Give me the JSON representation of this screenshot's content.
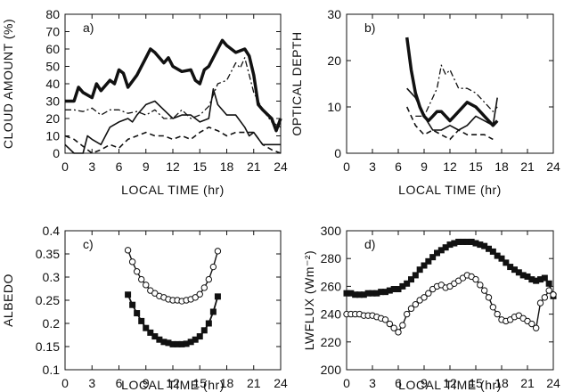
{
  "chart_data": [
    {
      "type": "line",
      "panel_label": "a)",
      "xlabel": "LOCAL TIME (hr)",
      "ylabel": "CLOUD AMOUNT (%)",
      "xlim": [
        0,
        24
      ],
      "ylim": [
        0,
        80
      ],
      "xticks": [
        0,
        3,
        6,
        9,
        12,
        15,
        18,
        21,
        24
      ],
      "yticks": [
        0,
        10,
        20,
        30,
        40,
        50,
        60,
        70,
        80
      ],
      "series": [
        {
          "style": "thick",
          "x": [
            0,
            1,
            1.5,
            2,
            3,
            3.5,
            4,
            5,
            5.5,
            6,
            6.5,
            7,
            8,
            9,
            9.5,
            10,
            11,
            11.5,
            12,
            13,
            14,
            14.5,
            15,
            15.5,
            16,
            17,
            17.5,
            18,
            19,
            20,
            20.5,
            21,
            21.5,
            22,
            23,
            23.5,
            24
          ],
          "y": [
            30,
            30,
            38,
            35,
            32,
            40,
            36,
            42,
            40,
            48,
            46,
            38,
            45,
            55,
            60,
            58,
            52,
            55,
            50,
            47,
            48,
            42,
            40,
            48,
            50,
            60,
            65,
            62,
            58,
            60,
            56,
            45,
            28,
            25,
            20,
            13,
            20
          ]
        },
        {
          "style": "thin",
          "x": [
            0,
            1,
            2,
            2.5,
            3,
            4,
            5,
            6,
            7,
            7.5,
            8,
            9,
            10,
            11,
            12,
            13,
            14,
            15,
            16,
            16.5,
            17,
            18,
            19,
            20,
            20.5,
            21,
            22,
            23,
            24
          ],
          "y": [
            5,
            0,
            0,
            10,
            8,
            5,
            15,
            18,
            20,
            18,
            22,
            28,
            30,
            25,
            20,
            22,
            22,
            18,
            20,
            37,
            28,
            22,
            22,
            15,
            10,
            12,
            5,
            5,
            5
          ]
        },
        {
          "style": "dashdot",
          "x": [
            0,
            1,
            2,
            3,
            4,
            5,
            6,
            7,
            8,
            9,
            10,
            11,
            12,
            13,
            14,
            15,
            16,
            17,
            18,
            19,
            19.5,
            20,
            21,
            22,
            23,
            24
          ],
          "y": [
            25,
            25,
            24,
            26,
            22,
            25,
            25,
            23,
            24,
            22,
            25,
            20,
            20,
            25,
            20,
            22,
            27,
            40,
            42,
            52,
            49,
            55,
            35,
            25,
            18,
            15
          ]
        },
        {
          "style": "dashed",
          "x": [
            0,
            1,
            2,
            3,
            4,
            5,
            6,
            7,
            8,
            9,
            10,
            11,
            12,
            13,
            14,
            15,
            16,
            17,
            18,
            19,
            20,
            21,
            22,
            23,
            24
          ],
          "y": [
            10,
            8,
            4,
            0,
            2,
            5,
            3,
            8,
            10,
            12,
            10,
            10,
            8,
            10,
            8,
            12,
            15,
            13,
            10,
            12,
            12,
            12,
            5,
            2,
            0
          ]
        }
      ]
    },
    {
      "type": "line",
      "panel_label": "b)",
      "xlabel": "LOCAL TIME (hr)",
      "ylabel": "OPTICAL DEPTH",
      "xlim": [
        0,
        24
      ],
      "ylim": [
        0,
        30
      ],
      "xticks": [
        0,
        3,
        6,
        9,
        12,
        15,
        18,
        21,
        24
      ],
      "yticks": [
        0,
        10,
        20,
        30
      ],
      "series": [
        {
          "style": "thick",
          "x": [
            7,
            7.5,
            8,
            8.5,
            9,
            9.5,
            10,
            10.5,
            11,
            11.5,
            12,
            13,
            14,
            15,
            16,
            17,
            17.5
          ],
          "y": [
            25,
            18,
            13,
            10,
            8,
            7,
            8,
            9,
            9,
            8,
            7,
            9,
            11,
            10,
            8,
            6,
            7
          ]
        },
        {
          "style": "thin",
          "x": [
            7,
            8,
            9,
            10,
            11,
            12,
            13,
            14,
            15,
            16,
            17,
            17.5
          ],
          "y": [
            14,
            12,
            8,
            5,
            5,
            6,
            5,
            6,
            8,
            7,
            6,
            12
          ]
        },
        {
          "style": "dashdot",
          "x": [
            8,
            9,
            10,
            10.5,
            11,
            11.5,
            12,
            13,
            14,
            15,
            16,
            17,
            17.5
          ],
          "y": [
            8,
            8,
            12,
            14,
            19,
            17,
            18,
            14,
            14,
            13,
            11,
            9,
            10
          ]
        },
        {
          "style": "dashed",
          "x": [
            7,
            8,
            9,
            10,
            11,
            12,
            13,
            14,
            15,
            16,
            17
          ],
          "y": [
            10,
            6,
            4,
            5,
            4,
            3,
            5,
            4,
            4,
            4,
            3
          ]
        }
      ]
    },
    {
      "type": "line",
      "panel_label": "c)",
      "xlabel": "LOCAL TIME (hr)",
      "ylabel": "ALBEDO",
      "xlim": [
        0,
        24
      ],
      "ylim": [
        0.1,
        0.4
      ],
      "xticks": [
        0,
        3,
        6,
        9,
        12,
        15,
        18,
        21,
        24
      ],
      "yticks": [
        0.1,
        0.15,
        0.2,
        0.25,
        0.3,
        0.35,
        0.4
      ],
      "ytick_labels": [
        "0.1",
        "0.15",
        "0.2",
        "0.25",
        "0.3",
        "0.35",
        "0.4"
      ],
      "series": [
        {
          "style": "circles",
          "x": [
            7,
            7.5,
            8,
            8.5,
            9,
            9.5,
            10,
            10.5,
            11,
            11.5,
            12,
            12.5,
            13,
            13.5,
            14,
            14.5,
            15,
            15.5,
            16,
            16.5,
            17
          ],
          "y": [
            0.358,
            0.333,
            0.312,
            0.295,
            0.283,
            0.271,
            0.265,
            0.259,
            0.256,
            0.252,
            0.25,
            0.25,
            0.248,
            0.25,
            0.252,
            0.256,
            0.263,
            0.277,
            0.295,
            0.322,
            0.356
          ]
        },
        {
          "style": "squares",
          "x": [
            7,
            7.5,
            8,
            8.5,
            9,
            9.5,
            10,
            10.5,
            11,
            11.5,
            12,
            12.5,
            13,
            13.5,
            14,
            14.5,
            15,
            15.5,
            16,
            16.5,
            17
          ],
          "y": [
            0.262,
            0.24,
            0.222,
            0.205,
            0.19,
            0.18,
            0.172,
            0.165,
            0.16,
            0.158,
            0.155,
            0.155,
            0.155,
            0.156,
            0.16,
            0.165,
            0.172,
            0.185,
            0.2,
            0.225,
            0.258
          ]
        }
      ]
    },
    {
      "type": "line",
      "panel_label": "d)",
      "xlabel": "LOCAL TIME (hr)",
      "ylabel": "LWFLUX (Wm⁻²)",
      "xlim": [
        0,
        24
      ],
      "ylim": [
        200,
        300
      ],
      "xticks": [
        0,
        3,
        6,
        9,
        12,
        15,
        18,
        21,
        24
      ],
      "yticks": [
        200,
        220,
        240,
        260,
        280,
        300
      ],
      "series": [
        {
          "style": "squares",
          "x": [
            0,
            0.5,
            1,
            1.5,
            2,
            2.5,
            3,
            3.5,
            4,
            4.5,
            5,
            5.5,
            6,
            6.5,
            7,
            7.5,
            8,
            8.5,
            9,
            9.5,
            10,
            10.5,
            11,
            11.5,
            12,
            12.5,
            13,
            13.5,
            14,
            14.5,
            15,
            15.5,
            16,
            16.5,
            17,
            17.5,
            18,
            18.5,
            19,
            19.5,
            20,
            20.5,
            21,
            21.5,
            22,
            22.5,
            23,
            23.5,
            24
          ],
          "y": [
            255,
            255,
            254,
            254,
            254,
            255,
            255,
            255,
            256,
            256,
            257,
            258,
            258,
            260,
            262,
            265,
            268,
            272,
            275,
            278,
            281,
            284,
            286,
            288,
            290,
            291,
            292,
            292,
            292,
            292,
            291,
            290,
            289,
            287,
            285,
            282,
            280,
            277,
            274,
            272,
            270,
            268,
            267,
            265,
            264,
            265,
            266,
            262,
            253
          ]
        },
        {
          "style": "circles",
          "x": [
            0,
            0.5,
            1,
            1.5,
            2,
            2.5,
            3,
            3.5,
            4,
            4.5,
            5,
            5.5,
            6,
            6.5,
            7,
            7.5,
            8,
            8.5,
            9,
            9.5,
            10,
            10.5,
            11,
            11.5,
            12,
            12.5,
            13,
            13.5,
            14,
            14.5,
            15,
            15.5,
            16,
            16.5,
            17,
            17.5,
            18,
            18.5,
            19,
            19.5,
            20,
            20.5,
            21,
            21.5,
            22,
            22.5,
            23,
            23.5,
            24
          ],
          "y": [
            240,
            240,
            240,
            240,
            239,
            239,
            239,
            238,
            237,
            236,
            233,
            230,
            227,
            232,
            240,
            244,
            247,
            250,
            252,
            255,
            258,
            260,
            261,
            259,
            260,
            262,
            264,
            266,
            268,
            267,
            265,
            261,
            257,
            252,
            245,
            240,
            236,
            235,
            236,
            238,
            239,
            237,
            235,
            233,
            230,
            248,
            252,
            257,
            254
          ]
        }
      ]
    }
  ]
}
